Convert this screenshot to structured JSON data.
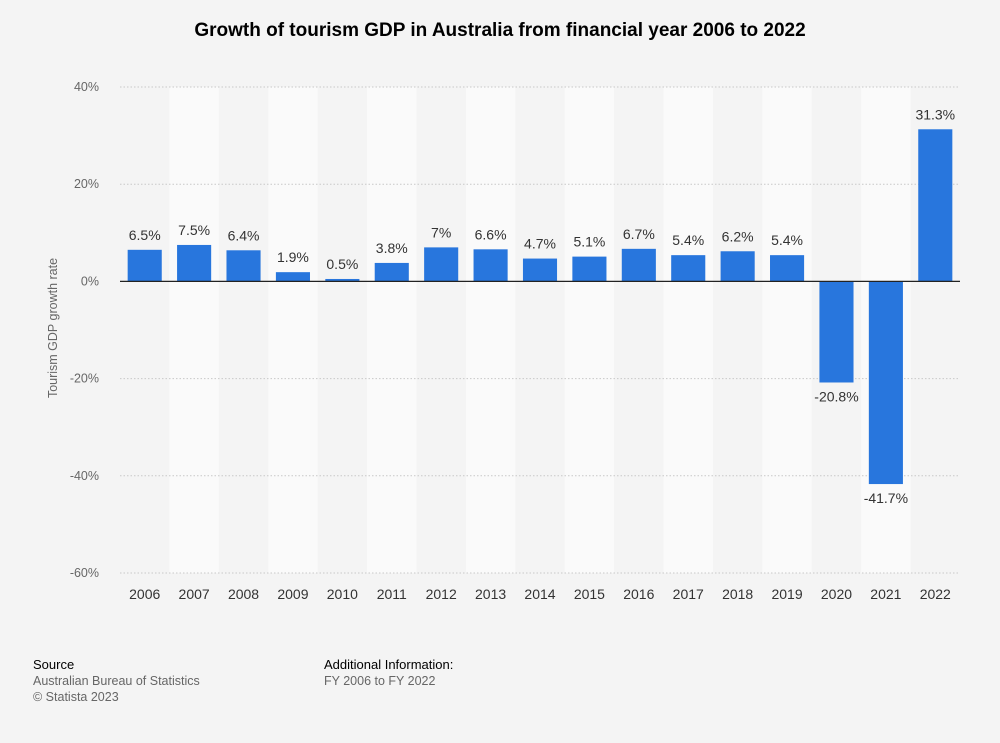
{
  "colors": {
    "bar": "#2876dd",
    "background": "#f4f4f4",
    "band": "#fafafa",
    "grid": "#c8c8c8",
    "zero_line": "#222222",
    "tick_text": "#666666",
    "label_text": "#333333"
  },
  "chart_data": {
    "type": "bar",
    "title": "Growth of tourism GDP in Australia from financial year 2006 to 2022",
    "xlabel": "",
    "ylabel": "Tourism GDP growth rate",
    "ylim": [
      -60,
      40
    ],
    "yticks": [
      40,
      20,
      0,
      -20,
      -40,
      -60
    ],
    "ytick_labels": [
      "40%",
      "20%",
      "0%",
      "-20%",
      "-40%",
      "-60%"
    ],
    "grid": true,
    "categories": [
      "2006",
      "2007",
      "2008",
      "2009",
      "2010",
      "2011",
      "2012",
      "2013",
      "2014",
      "2015",
      "2016",
      "2017",
      "2018",
      "2019",
      "2020",
      "2021",
      "2022"
    ],
    "values": [
      6.5,
      7.5,
      6.4,
      1.9,
      0.5,
      3.8,
      7,
      6.6,
      4.7,
      5.1,
      6.7,
      5.4,
      6.2,
      5.4,
      -20.8,
      -41.7,
      31.3
    ],
    "value_labels": [
      "6.5%",
      "7.5%",
      "6.4%",
      "1.9%",
      "0.5%",
      "3.8%",
      "7%",
      "6.6%",
      "4.7%",
      "5.1%",
      "6.7%",
      "5.4%",
      "6.2%",
      "5.4%",
      "-20.8%",
      "-41.7%",
      "31.3%"
    ]
  },
  "footer": {
    "source_heading": "Source",
    "source_line1": "Australian Bureau of Statistics",
    "source_line2": "© Statista 2023",
    "info_heading": "Additional Information:",
    "info_line1": "FY 2006 to FY 2022"
  }
}
